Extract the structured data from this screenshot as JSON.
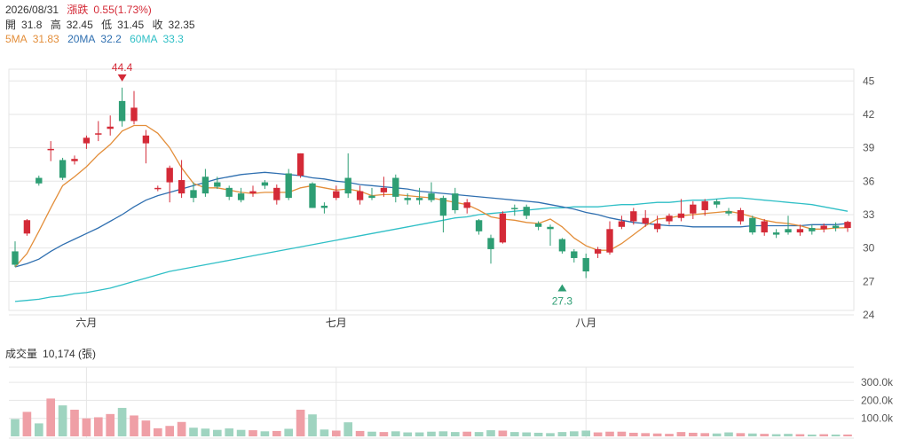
{
  "header": {
    "date": "2026/08/31",
    "change_label": "漲跌",
    "change_value": "0.55(1.73%)",
    "open_label": "開",
    "open": "31.8",
    "high_label": "高",
    "high": "32.45",
    "low_label": "低",
    "low": "31.45",
    "close_label": "收",
    "close": "32.35",
    "ma5_label": "5MA",
    "ma5": "31.83",
    "ma20_label": "20MA",
    "ma20": "32.2",
    "ma60_label": "60MA",
    "ma60": "33.3"
  },
  "volume_header": {
    "label": "成交量",
    "value": "10,174 (張)"
  },
  "colors": {
    "up": "#d42a37",
    "down": "#2e9e74",
    "ma5": "#e38e3a",
    "ma20": "#2f6fb0",
    "ma60": "#2fbfc6",
    "grid": "#e6e6e6"
  },
  "chart_data": [
    {
      "type": "candlestick",
      "title": "",
      "y_ticks": [
        "45",
        "42",
        "39",
        "36",
        "33",
        "30",
        "27",
        "24"
      ],
      "ylim": [
        24,
        45.5
      ],
      "x_month_labels": [
        {
          "label": "六月",
          "index": 6
        },
        {
          "label": "七月",
          "index": 27
        },
        {
          "label": "八月",
          "index": 48
        }
      ],
      "annotations": [
        {
          "text": "44.4",
          "index": 9,
          "value": 44.4,
          "type": "high"
        },
        {
          "text": "27.3",
          "index": 46,
          "value": 27.3,
          "type": "low"
        }
      ],
      "candles": [
        [
          29.7,
          28.5,
          30.6,
          28.3
        ],
        [
          31.3,
          32.5,
          32.6,
          31.1
        ],
        [
          36.3,
          35.8,
          36.5,
          35.6
        ],
        [
          38.9,
          38.9,
          39.6,
          37.8
        ],
        [
          37.9,
          36.3,
          38.1,
          36.1
        ],
        [
          37.8,
          38.0,
          38.3,
          37.5
        ],
        [
          39.4,
          39.9,
          40.1,
          38.9
        ],
        [
          40.3,
          40.3,
          41.4,
          39.6
        ],
        [
          40.7,
          40.9,
          41.9,
          40.1
        ],
        [
          43.2,
          41.4,
          44.4,
          40.9
        ],
        [
          41.4,
          42.6,
          44.1,
          41.1
        ],
        [
          39.4,
          40.1,
          40.6,
          37.6
        ],
        [
          35.4,
          35.4,
          35.6,
          35.1
        ],
        [
          35.9,
          37.2,
          37.4,
          34.1
        ],
        [
          34.9,
          36.1,
          37.9,
          34.5
        ],
        [
          35.2,
          34.5,
          35.9,
          34.1
        ],
        [
          36.4,
          34.9,
          37.1,
          34.6
        ],
        [
          35.9,
          35.5,
          36.4,
          35.3
        ],
        [
          35.4,
          34.6,
          35.6,
          34.3
        ],
        [
          34.9,
          34.3,
          35.4,
          34.1
        ],
        [
          34.9,
          35.1,
          35.6,
          34.6
        ],
        [
          35.9,
          35.6,
          36.1,
          35.3
        ],
        [
          34.3,
          35.4,
          35.7,
          33.9
        ],
        [
          36.7,
          34.5,
          37.1,
          34.3
        ],
        [
          36.5,
          38.5,
          38.5,
          36.3
        ],
        [
          35.8,
          33.6,
          35.9,
          33.6
        ],
        [
          33.8,
          33.6,
          34.1,
          33.1
        ],
        [
          34.5,
          35.1,
          35.6,
          34.3
        ],
        [
          36.3,
          34.9,
          38.5,
          34.5
        ],
        [
          34.3,
          35.1,
          35.6,
          33.9
        ],
        [
          34.7,
          34.5,
          35.4,
          34.3
        ],
        [
          35.0,
          35.4,
          36.4,
          34.6
        ],
        [
          36.3,
          34.6,
          36.6,
          34.1
        ],
        [
          34.5,
          34.3,
          34.9,
          33.9
        ],
        [
          34.5,
          34.3,
          35.4,
          33.9
        ],
        [
          34.9,
          34.3,
          35.9,
          34.1
        ],
        [
          34.5,
          32.9,
          34.7,
          31.4
        ],
        [
          34.9,
          33.4,
          35.4,
          33.1
        ],
        [
          33.6,
          34.1,
          34.4,
          33.1
        ],
        [
          32.5,
          31.5,
          32.6,
          31.2
        ],
        [
          30.9,
          29.9,
          31.2,
          28.6
        ],
        [
          30.5,
          33.1,
          33.3,
          30.4
        ],
        [
          33.6,
          33.5,
          33.9,
          32.9
        ],
        [
          33.7,
          32.9,
          33.9,
          32.6
        ],
        [
          32.2,
          31.9,
          32.4,
          31.6
        ],
        [
          31.9,
          31.7,
          32.1,
          30.2
        ],
        [
          30.8,
          29.7,
          30.9,
          29.5
        ],
        [
          29.7,
          29.1,
          29.9,
          28.7
        ],
        [
          29.1,
          27.9,
          29.5,
          27.3
        ],
        [
          29.5,
          29.9,
          30.1,
          29.1
        ],
        [
          29.6,
          31.7,
          32.4,
          29.4
        ],
        [
          31.9,
          32.4,
          32.9,
          31.7
        ],
        [
          32.4,
          33.3,
          33.6,
          32.1
        ],
        [
          32.2,
          32.7,
          33.4,
          31.9
        ],
        [
          31.7,
          32.2,
          32.9,
          31.4
        ],
        [
          32.4,
          32.9,
          33.1,
          32.1
        ],
        [
          32.7,
          33.1,
          34.4,
          32.4
        ],
        [
          33.1,
          33.9,
          34.2,
          32.6
        ],
        [
          33.4,
          34.2,
          34.4,
          32.9
        ],
        [
          34.2,
          33.9,
          34.4,
          33.6
        ],
        [
          33.3,
          33.1,
          33.6,
          32.9
        ],
        [
          32.4,
          33.4,
          33.6,
          32.1
        ],
        [
          32.7,
          31.4,
          32.9,
          31.2
        ],
        [
          31.4,
          32.4,
          32.6,
          31.1
        ],
        [
          31.4,
          31.2,
          31.7,
          30.9
        ],
        [
          31.7,
          31.4,
          32.9,
          31.2
        ],
        [
          31.4,
          31.7,
          32.1,
          31.1
        ],
        [
          31.8,
          31.5,
          32.1,
          31.2
        ],
        [
          31.7,
          32.0,
          32.2,
          31.4
        ],
        [
          32.0,
          31.8,
          32.3,
          31.5
        ],
        [
          31.8,
          32.35,
          32.45,
          31.45
        ]
      ],
      "ma5": [
        28.3,
        29.5,
        31.5,
        33.6,
        35.6,
        36.4,
        37.3,
        38.4,
        39.3,
        40.5,
        41.0,
        41.0,
        40.3,
        39.0,
        37.2,
        35.8,
        35.4,
        35.4,
        35.2,
        35.0,
        34.9,
        35.0,
        35.0,
        35.0,
        35.4,
        35.6,
        35.4,
        35.2,
        35.3,
        35.1,
        34.7,
        34.8,
        34.8,
        34.7,
        34.6,
        34.5,
        34.3,
        34.1,
        33.9,
        33.4,
        32.8,
        32.6,
        32.5,
        32.3,
        32.2,
        32.6,
        31.9,
        30.9,
        30.2,
        29.8,
        29.8,
        30.4,
        31.2,
        32.0,
        32.6,
        32.7,
        32.9,
        33.0,
        33.1,
        33.2,
        33.3,
        33.1,
        32.8,
        32.5,
        32.3,
        32.2,
        32.0,
        31.7,
        31.7,
        31.8,
        31.83
      ],
      "ma20": [
        28.3,
        28.6,
        29.0,
        29.7,
        30.3,
        30.8,
        31.3,
        31.8,
        32.4,
        33.0,
        33.7,
        34.3,
        34.7,
        35.0,
        35.3,
        35.6,
        35.9,
        36.2,
        36.4,
        36.6,
        36.7,
        36.8,
        36.7,
        36.6,
        36.5,
        36.3,
        36.2,
        36.0,
        35.9,
        35.7,
        35.6,
        35.5,
        35.4,
        35.3,
        35.1,
        35.0,
        34.9,
        34.8,
        34.7,
        34.6,
        34.5,
        34.4,
        34.3,
        34.2,
        34.1,
        33.9,
        33.7,
        33.5,
        33.2,
        33.0,
        32.7,
        32.5,
        32.3,
        32.2,
        32.1,
        32.0,
        32.0,
        31.9,
        31.9,
        31.9,
        31.9,
        31.9,
        32.0,
        32.0,
        32.0,
        32.0,
        32.0,
        32.1,
        32.1,
        32.1,
        32.2
      ],
      "ma60": [
        25.2,
        25.3,
        25.4,
        25.6,
        25.7,
        25.9,
        26.0,
        26.2,
        26.4,
        26.7,
        27.0,
        27.3,
        27.6,
        27.9,
        28.1,
        28.3,
        28.5,
        28.7,
        28.9,
        29.1,
        29.3,
        29.5,
        29.7,
        29.9,
        30.1,
        30.3,
        30.5,
        30.7,
        30.9,
        31.1,
        31.3,
        31.5,
        31.7,
        31.9,
        32.1,
        32.3,
        32.5,
        32.7,
        32.8,
        33.0,
        33.1,
        33.2,
        33.3,
        33.4,
        33.5,
        33.6,
        33.6,
        33.7,
        33.7,
        33.7,
        33.8,
        33.9,
        33.9,
        34.0,
        34.1,
        34.1,
        34.2,
        34.3,
        34.3,
        34.4,
        34.5,
        34.5,
        34.4,
        34.3,
        34.2,
        34.1,
        34.0,
        33.9,
        33.7,
        33.5,
        33.3
      ]
    },
    {
      "type": "bar",
      "title": "成交量",
      "y_ticks": [
        "300.0k",
        "200.0k",
        "100.0k"
      ],
      "ylim": [
        0,
        330000
      ],
      "values": [
        96000,
        136000,
        72000,
        210000,
        172000,
        148000,
        100000,
        106000,
        124000,
        158000,
        116000,
        88000,
        45000,
        58000,
        80000,
        48000,
        43000,
        36000,
        44000,
        36000,
        34000,
        28000,
        30000,
        42000,
        148000,
        122000,
        38000,
        32000,
        78000,
        30000,
        26000,
        24000,
        28000,
        22000,
        22000,
        26000,
        28000,
        24000,
        26000,
        24000,
        34000,
        32000,
        24000,
        22000,
        20000,
        18000,
        24000,
        28000,
        32000,
        22000,
        26000,
        26000,
        20000,
        18000,
        16000,
        14000,
        24000,
        20000,
        18000,
        16000,
        22000,
        18000,
        16000,
        14000,
        12000,
        14000,
        12000,
        10000,
        12000,
        10000,
        10174
      ]
    }
  ]
}
